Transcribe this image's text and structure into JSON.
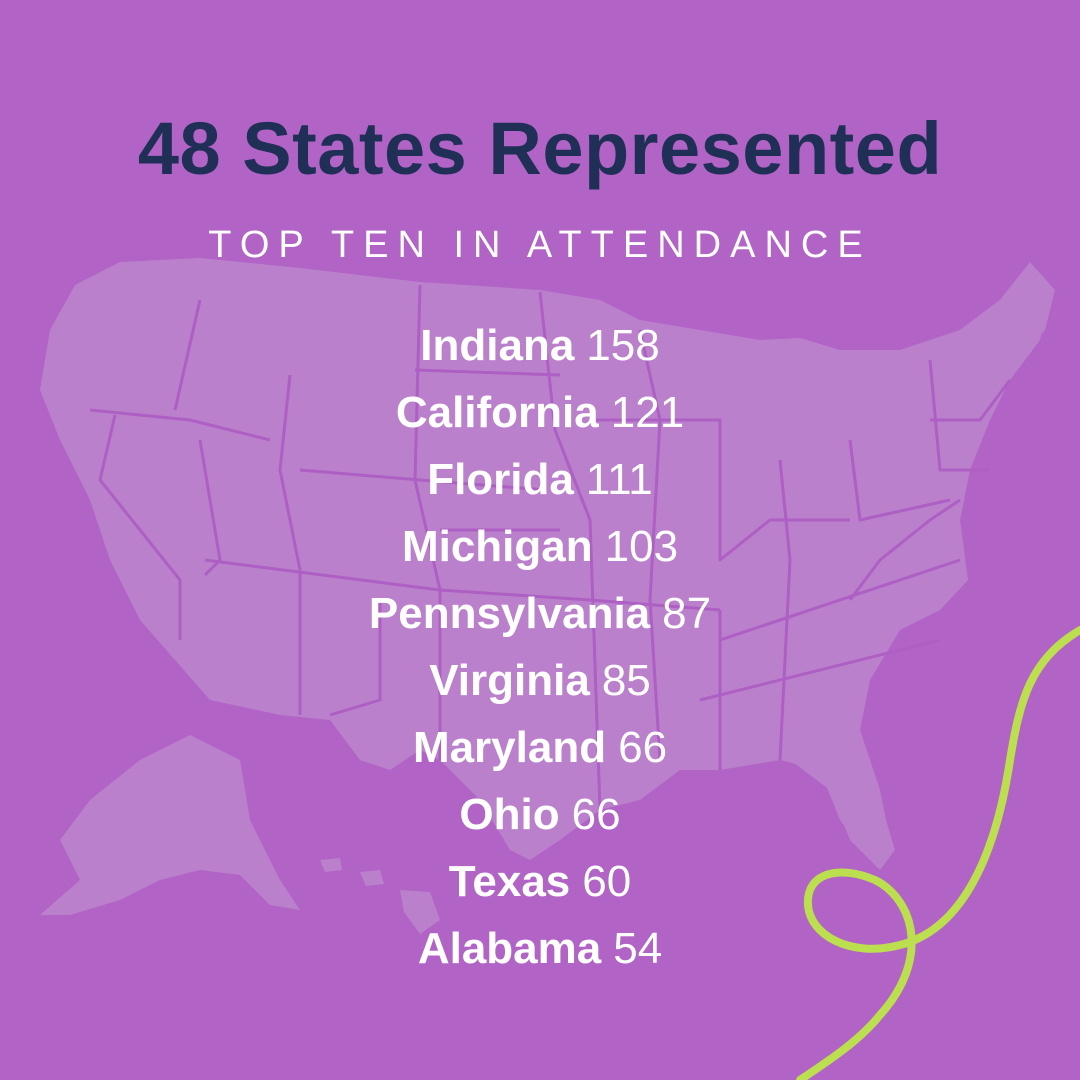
{
  "header": {
    "title": "48 States Represented",
    "subtitle": "TOP TEN IN ATTENDANCE"
  },
  "states": [
    {
      "name": "Indiana",
      "count": "158"
    },
    {
      "name": "California",
      "count": "121"
    },
    {
      "name": "Florida",
      "count": "111"
    },
    {
      "name": "Michigan",
      "count": "103"
    },
    {
      "name": "Pennsylvania",
      "count": "87"
    },
    {
      "name": "Virginia",
      "count": "85"
    },
    {
      "name": "Maryland",
      "count": "66"
    },
    {
      "name": "Ohio",
      "count": "66"
    },
    {
      "name": "Texas",
      "count": "60"
    },
    {
      "name": "Alabama",
      "count": "54"
    }
  ],
  "colors": {
    "background": "#b163c6",
    "map": "#bb80cc",
    "title": "#1f2f56",
    "text": "#ffffff",
    "ribbon": "#bcdf4f"
  }
}
